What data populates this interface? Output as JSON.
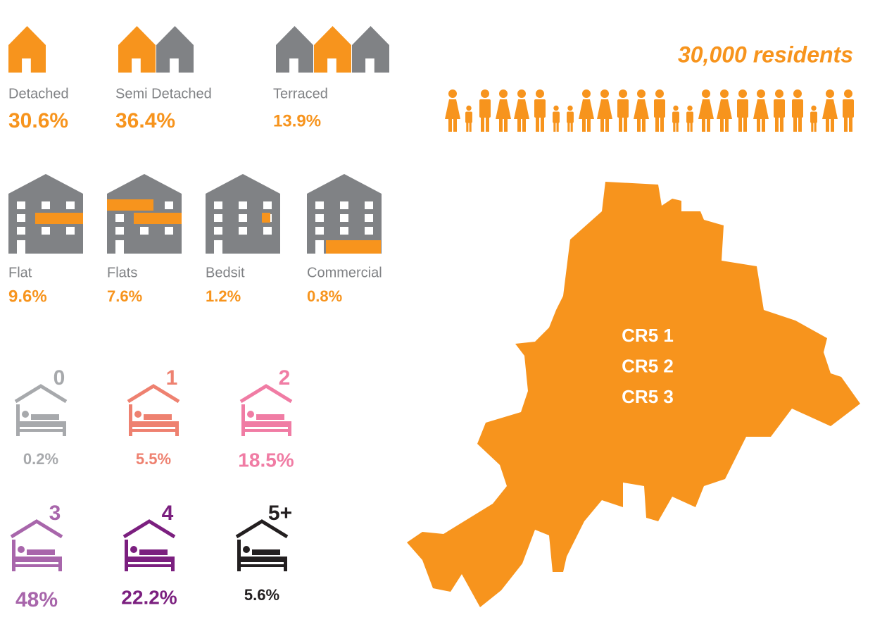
{
  "residents": "30,000 residents",
  "house_types": [
    {
      "label": "Detached",
      "value": "30.6%"
    },
    {
      "label": "Semi Detached",
      "value": "36.4%"
    },
    {
      "label": "Terraced",
      "value": "13.9%"
    }
  ],
  "flat_types": [
    {
      "label": "Flat",
      "value": "9.6%"
    },
    {
      "label": "Flats",
      "value": "7.6%"
    },
    {
      "label": "Bedsit",
      "value": "1.2%"
    },
    {
      "label": "Commercial",
      "value": "0.8%"
    }
  ],
  "bedrooms": [
    {
      "label": "0",
      "value": "0.2%",
      "color": "#a7a9ac"
    },
    {
      "label": "1",
      "value": "5.5%",
      "color": "#ee8170"
    },
    {
      "label": "2",
      "value": "18.5%",
      "color": "#f07ca4"
    },
    {
      "label": "3",
      "value": "48%",
      "color": "#a866ab"
    },
    {
      "label": "4",
      "value": "22.2%",
      "color": "#7b1f7f"
    },
    {
      "label": "5+",
      "value": "5.6%",
      "color": "#231f20"
    }
  ],
  "postcodes": [
    "CR5 1",
    "CR5 2",
    "CR5 3"
  ]
}
